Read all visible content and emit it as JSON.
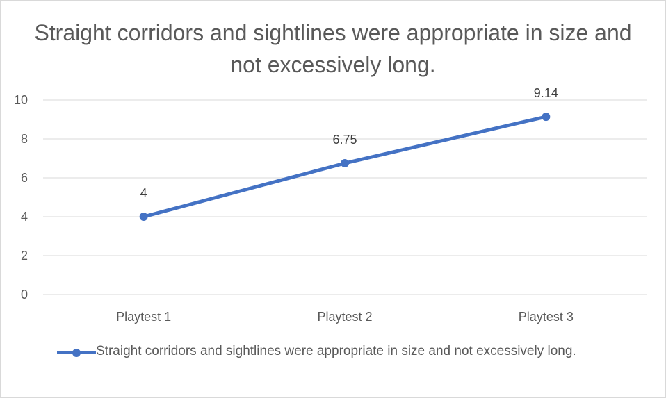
{
  "chart_data": {
    "type": "line",
    "title": "Straight corridors and sightlines were appropriate in size and not excessively long.",
    "categories": [
      "Playtest 1",
      "Playtest 2",
      "Playtest 3"
    ],
    "series": [
      {
        "name": "Straight corridors and sightlines were appropriate in size and not excessively long.",
        "values": [
          4,
          6.75,
          9.14
        ],
        "data_labels": [
          "4",
          "6.75",
          "9.14"
        ],
        "color": "#4472c4"
      }
    ],
    "ylim": [
      0,
      10
    ],
    "yticks": [
      "0",
      "2",
      "4",
      "6",
      "8",
      "10"
    ],
    "xlabel": "",
    "ylabel": "",
    "grid": true,
    "legend_position": "bottom"
  }
}
